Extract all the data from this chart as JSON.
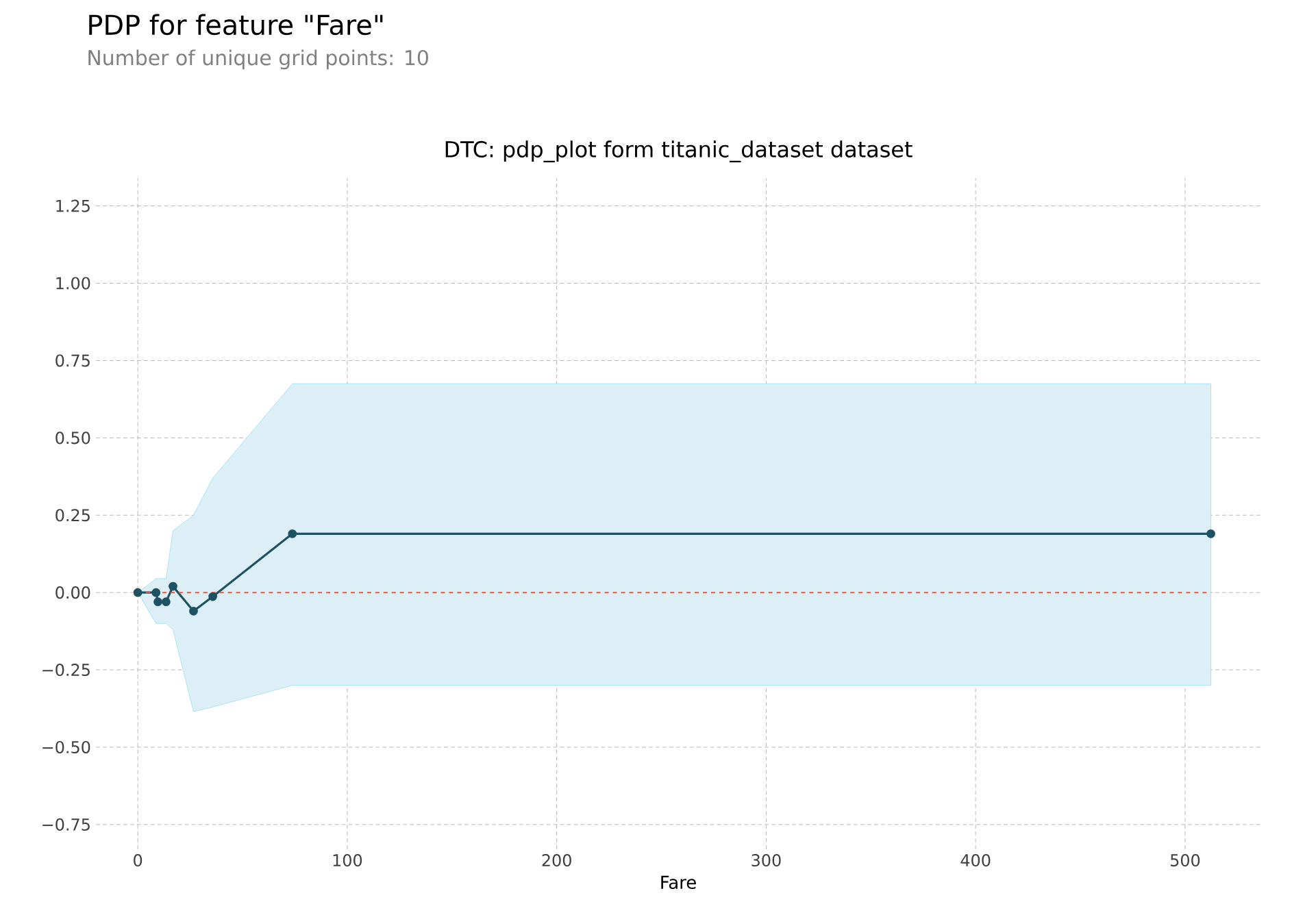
{
  "chart_data": {
    "type": "line",
    "title": "PDP for feature \"Fare\"",
    "subtitle": "Number of unique grid points: 10",
    "annotations": [
      "DTC: pdp_plot form titanic_dataset dataset"
    ],
    "xlabel": "Fare",
    "x": [
      0,
      8.7,
      9.6,
      13.5,
      16.8,
      26.6,
      35.8,
      73.8,
      512.3
    ],
    "series": [
      {
        "color": "#1e5263",
        "values": [
          0,
          0,
          -0.03,
          -0.03,
          0.02,
          -0.06,
          -0.013,
          0.19,
          0.19
        ],
        "lower": [
          0,
          -0.1,
          -0.1,
          -0.1,
          -0.12,
          -0.385,
          -0.37,
          -0.3,
          -0.3
        ],
        "upper": [
          0,
          0.045,
          0.045,
          0.045,
          0.2,
          0.25,
          0.37,
          0.675,
          0.675
        ]
      }
    ],
    "ref_lines": [
      {
        "axis": "y",
        "value": 0,
        "color": "#e8583e",
        "line_style": "dashed"
      }
    ],
    "xlim": [
      -20,
      536
    ],
    "ylim": [
      -0.83,
      1.34
    ],
    "xticks": [
      0,
      100,
      200,
      300,
      400,
      500
    ],
    "yticks": [
      {
        "value": -0.75,
        "label": "−0.75"
      },
      {
        "value": -0.5,
        "label": "−0.50"
      },
      {
        "value": -0.25,
        "label": "−0.25"
      },
      {
        "value": 0,
        "label": "0.00"
      },
      {
        "value": 0.25,
        "label": "0.25"
      },
      {
        "value": 0.5,
        "label": "0.50"
      },
      {
        "value": 0.75,
        "label": "0.75"
      },
      {
        "value": 1,
        "label": "1.00"
      },
      {
        "value": 1.25,
        "label": "1.25"
      }
    ],
    "grid": true,
    "marker": "circle",
    "line_style": "solid"
  }
}
